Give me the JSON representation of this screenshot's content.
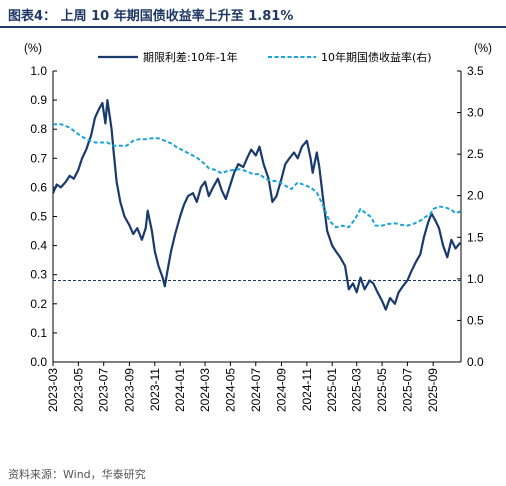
{
  "figure": {
    "title": "图表4： 上周 10 年期国债收益率上升至 1.81%",
    "source": "资料来源：Wind，华泰研究"
  },
  "colors": {
    "title": "#1f3864",
    "spread_line": "#1a3a6e",
    "yield_line": "#1aa3d9",
    "reference_line": "#1f3864"
  },
  "chart_data": {
    "type": "line",
    "title": "",
    "xlabel": "",
    "x_tick_labels": [
      "2023-03",
      "2023-05",
      "2023-07",
      "2023-09",
      "2023-11",
      "2024-01",
      "2024-03",
      "2024-05",
      "2024-07",
      "2024-09",
      "2024-11",
      "2025-01",
      "2025-03",
      "2025-05",
      "2025-07",
      "2025-09"
    ],
    "left_axis": {
      "unit_label": "(%)",
      "ylim": [
        0.0,
        1.0
      ],
      "ticks": [
        "0.0",
        "0.1",
        "0.2",
        "0.3",
        "0.4",
        "0.5",
        "0.6",
        "0.7",
        "0.8",
        "0.9",
        "1.0"
      ]
    },
    "right_axis": {
      "unit_label": "(%)",
      "ylim": [
        0.0,
        3.5
      ],
      "ticks": [
        "0.0",
        "0.5",
        "1.0",
        "1.5",
        "2.0",
        "2.5",
        "3.0",
        "3.5"
      ]
    },
    "x_range": [
      "2023-03-01",
      "2025-11-07"
    ],
    "legend_position": "top",
    "grid": false,
    "reference_line": {
      "axis": "left",
      "value": 0.28,
      "style": "dashed"
    },
    "series": [
      {
        "name": "期限利差:10年-1年",
        "axis": "left",
        "style": "solid",
        "points": [
          [
            "2023-03-01",
            0.58
          ],
          [
            "2023-03-10",
            0.61
          ],
          [
            "2023-03-20",
            0.6
          ],
          [
            "2023-04-01",
            0.62
          ],
          [
            "2023-04-10",
            0.64
          ],
          [
            "2023-04-20",
            0.63
          ],
          [
            "2023-05-01",
            0.66
          ],
          [
            "2023-05-10",
            0.7
          ],
          [
            "2023-05-20",
            0.73
          ],
          [
            "2023-06-01",
            0.78
          ],
          [
            "2023-06-10",
            0.84
          ],
          [
            "2023-06-20",
            0.87
          ],
          [
            "2023-06-28",
            0.89
          ],
          [
            "2023-07-05",
            0.82
          ],
          [
            "2023-07-10",
            0.9
          ],
          [
            "2023-07-15",
            0.85
          ],
          [
            "2023-07-20",
            0.8
          ],
          [
            "2023-07-25",
            0.72
          ],
          [
            "2023-08-01",
            0.62
          ],
          [
            "2023-08-10",
            0.55
          ],
          [
            "2023-08-20",
            0.5
          ],
          [
            "2023-09-01",
            0.47
          ],
          [
            "2023-09-10",
            0.44
          ],
          [
            "2023-09-20",
            0.46
          ],
          [
            "2023-10-01",
            0.42
          ],
          [
            "2023-10-10",
            0.46
          ],
          [
            "2023-10-15",
            0.52
          ],
          [
            "2023-10-25",
            0.45
          ],
          [
            "2023-11-01",
            0.38
          ],
          [
            "2023-11-10",
            0.33
          ],
          [
            "2023-11-20",
            0.29
          ],
          [
            "2023-11-25",
            0.26
          ],
          [
            "2023-12-01",
            0.31
          ],
          [
            "2023-12-10",
            0.38
          ],
          [
            "2023-12-20",
            0.44
          ],
          [
            "2024-01-01",
            0.5
          ],
          [
            "2024-01-10",
            0.54
          ],
          [
            "2024-01-20",
            0.57
          ],
          [
            "2024-02-01",
            0.58
          ],
          [
            "2024-02-10",
            0.55
          ],
          [
            "2024-02-20",
            0.6
          ],
          [
            "2024-03-01",
            0.62
          ],
          [
            "2024-03-10",
            0.57
          ],
          [
            "2024-03-20",
            0.6
          ],
          [
            "2024-04-01",
            0.63
          ],
          [
            "2024-04-10",
            0.59
          ],
          [
            "2024-04-20",
            0.56
          ],
          [
            "2024-05-01",
            0.61
          ],
          [
            "2024-05-10",
            0.65
          ],
          [
            "2024-05-20",
            0.68
          ],
          [
            "2024-06-01",
            0.67
          ],
          [
            "2024-06-10",
            0.7
          ],
          [
            "2024-06-20",
            0.73
          ],
          [
            "2024-07-01",
            0.71
          ],
          [
            "2024-07-10",
            0.74
          ],
          [
            "2024-07-20",
            0.68
          ],
          [
            "2024-08-01",
            0.63
          ],
          [
            "2024-08-10",
            0.55
          ],
          [
            "2024-08-20",
            0.57
          ],
          [
            "2024-09-01",
            0.63
          ],
          [
            "2024-09-10",
            0.68
          ],
          [
            "2024-09-20",
            0.7
          ],
          [
            "2024-10-01",
            0.72
          ],
          [
            "2024-10-10",
            0.7
          ],
          [
            "2024-10-20",
            0.74
          ],
          [
            "2024-11-01",
            0.76
          ],
          [
            "2024-11-10",
            0.7
          ],
          [
            "2024-11-15",
            0.65
          ],
          [
            "2024-11-25",
            0.72
          ],
          [
            "2024-12-01",
            0.67
          ],
          [
            "2024-12-10",
            0.56
          ],
          [
            "2024-12-20",
            0.45
          ],
          [
            "2025-01-01",
            0.4
          ],
          [
            "2025-01-10",
            0.38
          ],
          [
            "2025-01-20",
            0.36
          ],
          [
            "2025-02-01",
            0.33
          ],
          [
            "2025-02-10",
            0.25
          ],
          [
            "2025-02-20",
            0.27
          ],
          [
            "2025-03-01",
            0.24
          ],
          [
            "2025-03-10",
            0.29
          ],
          [
            "2025-03-20",
            0.25
          ],
          [
            "2025-04-01",
            0.28
          ],
          [
            "2025-04-10",
            0.27
          ],
          [
            "2025-04-20",
            0.24
          ],
          [
            "2025-05-01",
            0.21
          ],
          [
            "2025-05-10",
            0.18
          ],
          [
            "2025-05-20",
            0.22
          ],
          [
            "2025-06-01",
            0.2
          ],
          [
            "2025-06-10",
            0.24
          ],
          [
            "2025-06-20",
            0.26
          ],
          [
            "2025-07-01",
            0.28
          ],
          [
            "2025-07-10",
            0.31
          ],
          [
            "2025-07-20",
            0.34
          ],
          [
            "2025-08-01",
            0.37
          ],
          [
            "2025-08-10",
            0.43
          ],
          [
            "2025-08-20",
            0.48
          ],
          [
            "2025-08-28",
            0.51
          ],
          [
            "2025-09-05",
            0.49
          ],
          [
            "2025-09-15",
            0.46
          ],
          [
            "2025-09-25",
            0.4
          ],
          [
            "2025-10-05",
            0.36
          ],
          [
            "2025-10-15",
            0.42
          ],
          [
            "2025-10-25",
            0.39
          ],
          [
            "2025-11-05",
            0.41
          ]
        ]
      },
      {
        "name": "10年期国债收益率(右)",
        "axis": "right",
        "style": "dashed",
        "points": [
          [
            "2023-03-01",
            2.86
          ],
          [
            "2023-03-20",
            2.86
          ],
          [
            "2023-04-10",
            2.82
          ],
          [
            "2023-05-01",
            2.74
          ],
          [
            "2023-05-20",
            2.68
          ],
          [
            "2023-06-10",
            2.64
          ],
          [
            "2023-06-25",
            2.64
          ],
          [
            "2023-07-10",
            2.64
          ],
          [
            "2023-07-25",
            2.6
          ],
          [
            "2023-08-10",
            2.6
          ],
          [
            "2023-08-25",
            2.6
          ],
          [
            "2023-09-10",
            2.66
          ],
          [
            "2023-09-25",
            2.68
          ],
          [
            "2023-10-10",
            2.68
          ],
          [
            "2023-10-25",
            2.69
          ],
          [
            "2023-11-10",
            2.69
          ],
          [
            "2023-11-25",
            2.66
          ],
          [
            "2023-12-10",
            2.63
          ],
          [
            "2023-12-25",
            2.58
          ],
          [
            "2024-01-10",
            2.54
          ],
          [
            "2024-01-25",
            2.5
          ],
          [
            "2024-02-10",
            2.46
          ],
          [
            "2024-02-25",
            2.4
          ],
          [
            "2024-03-10",
            2.33
          ],
          [
            "2024-03-25",
            2.31
          ],
          [
            "2024-04-10",
            2.27
          ],
          [
            "2024-04-25",
            2.3
          ],
          [
            "2024-05-10",
            2.31
          ],
          [
            "2024-05-25",
            2.32
          ],
          [
            "2024-06-10",
            2.29
          ],
          [
            "2024-06-25",
            2.26
          ],
          [
            "2024-07-10",
            2.26
          ],
          [
            "2024-07-25",
            2.2
          ],
          [
            "2024-08-10",
            2.18
          ],
          [
            "2024-08-25",
            2.17
          ],
          [
            "2024-09-10",
            2.12
          ],
          [
            "2024-09-25",
            2.08
          ],
          [
            "2024-10-10",
            2.16
          ],
          [
            "2024-10-25",
            2.13
          ],
          [
            "2024-11-10",
            2.1
          ],
          [
            "2024-11-25",
            2.04
          ],
          [
            "2024-12-10",
            1.88
          ],
          [
            "2024-12-25",
            1.7
          ],
          [
            "2025-01-10",
            1.62
          ],
          [
            "2025-01-25",
            1.64
          ],
          [
            "2025-02-10",
            1.62
          ],
          [
            "2025-02-25",
            1.72
          ],
          [
            "2025-03-10",
            1.84
          ],
          [
            "2025-03-20",
            1.8
          ],
          [
            "2025-04-05",
            1.74
          ],
          [
            "2025-04-15",
            1.64
          ],
          [
            "2025-05-01",
            1.64
          ],
          [
            "2025-05-15",
            1.66
          ],
          [
            "2025-06-01",
            1.67
          ],
          [
            "2025-06-15",
            1.65
          ],
          [
            "2025-07-01",
            1.64
          ],
          [
            "2025-07-15",
            1.66
          ],
          [
            "2025-08-01",
            1.7
          ],
          [
            "2025-08-15",
            1.75
          ],
          [
            "2025-08-25",
            1.78
          ],
          [
            "2025-09-01",
            1.84
          ],
          [
            "2025-09-15",
            1.87
          ],
          [
            "2025-10-01",
            1.86
          ],
          [
            "2025-10-15",
            1.83
          ],
          [
            "2025-10-25",
            1.79
          ],
          [
            "2025-11-05",
            1.81
          ]
        ]
      }
    ]
  }
}
